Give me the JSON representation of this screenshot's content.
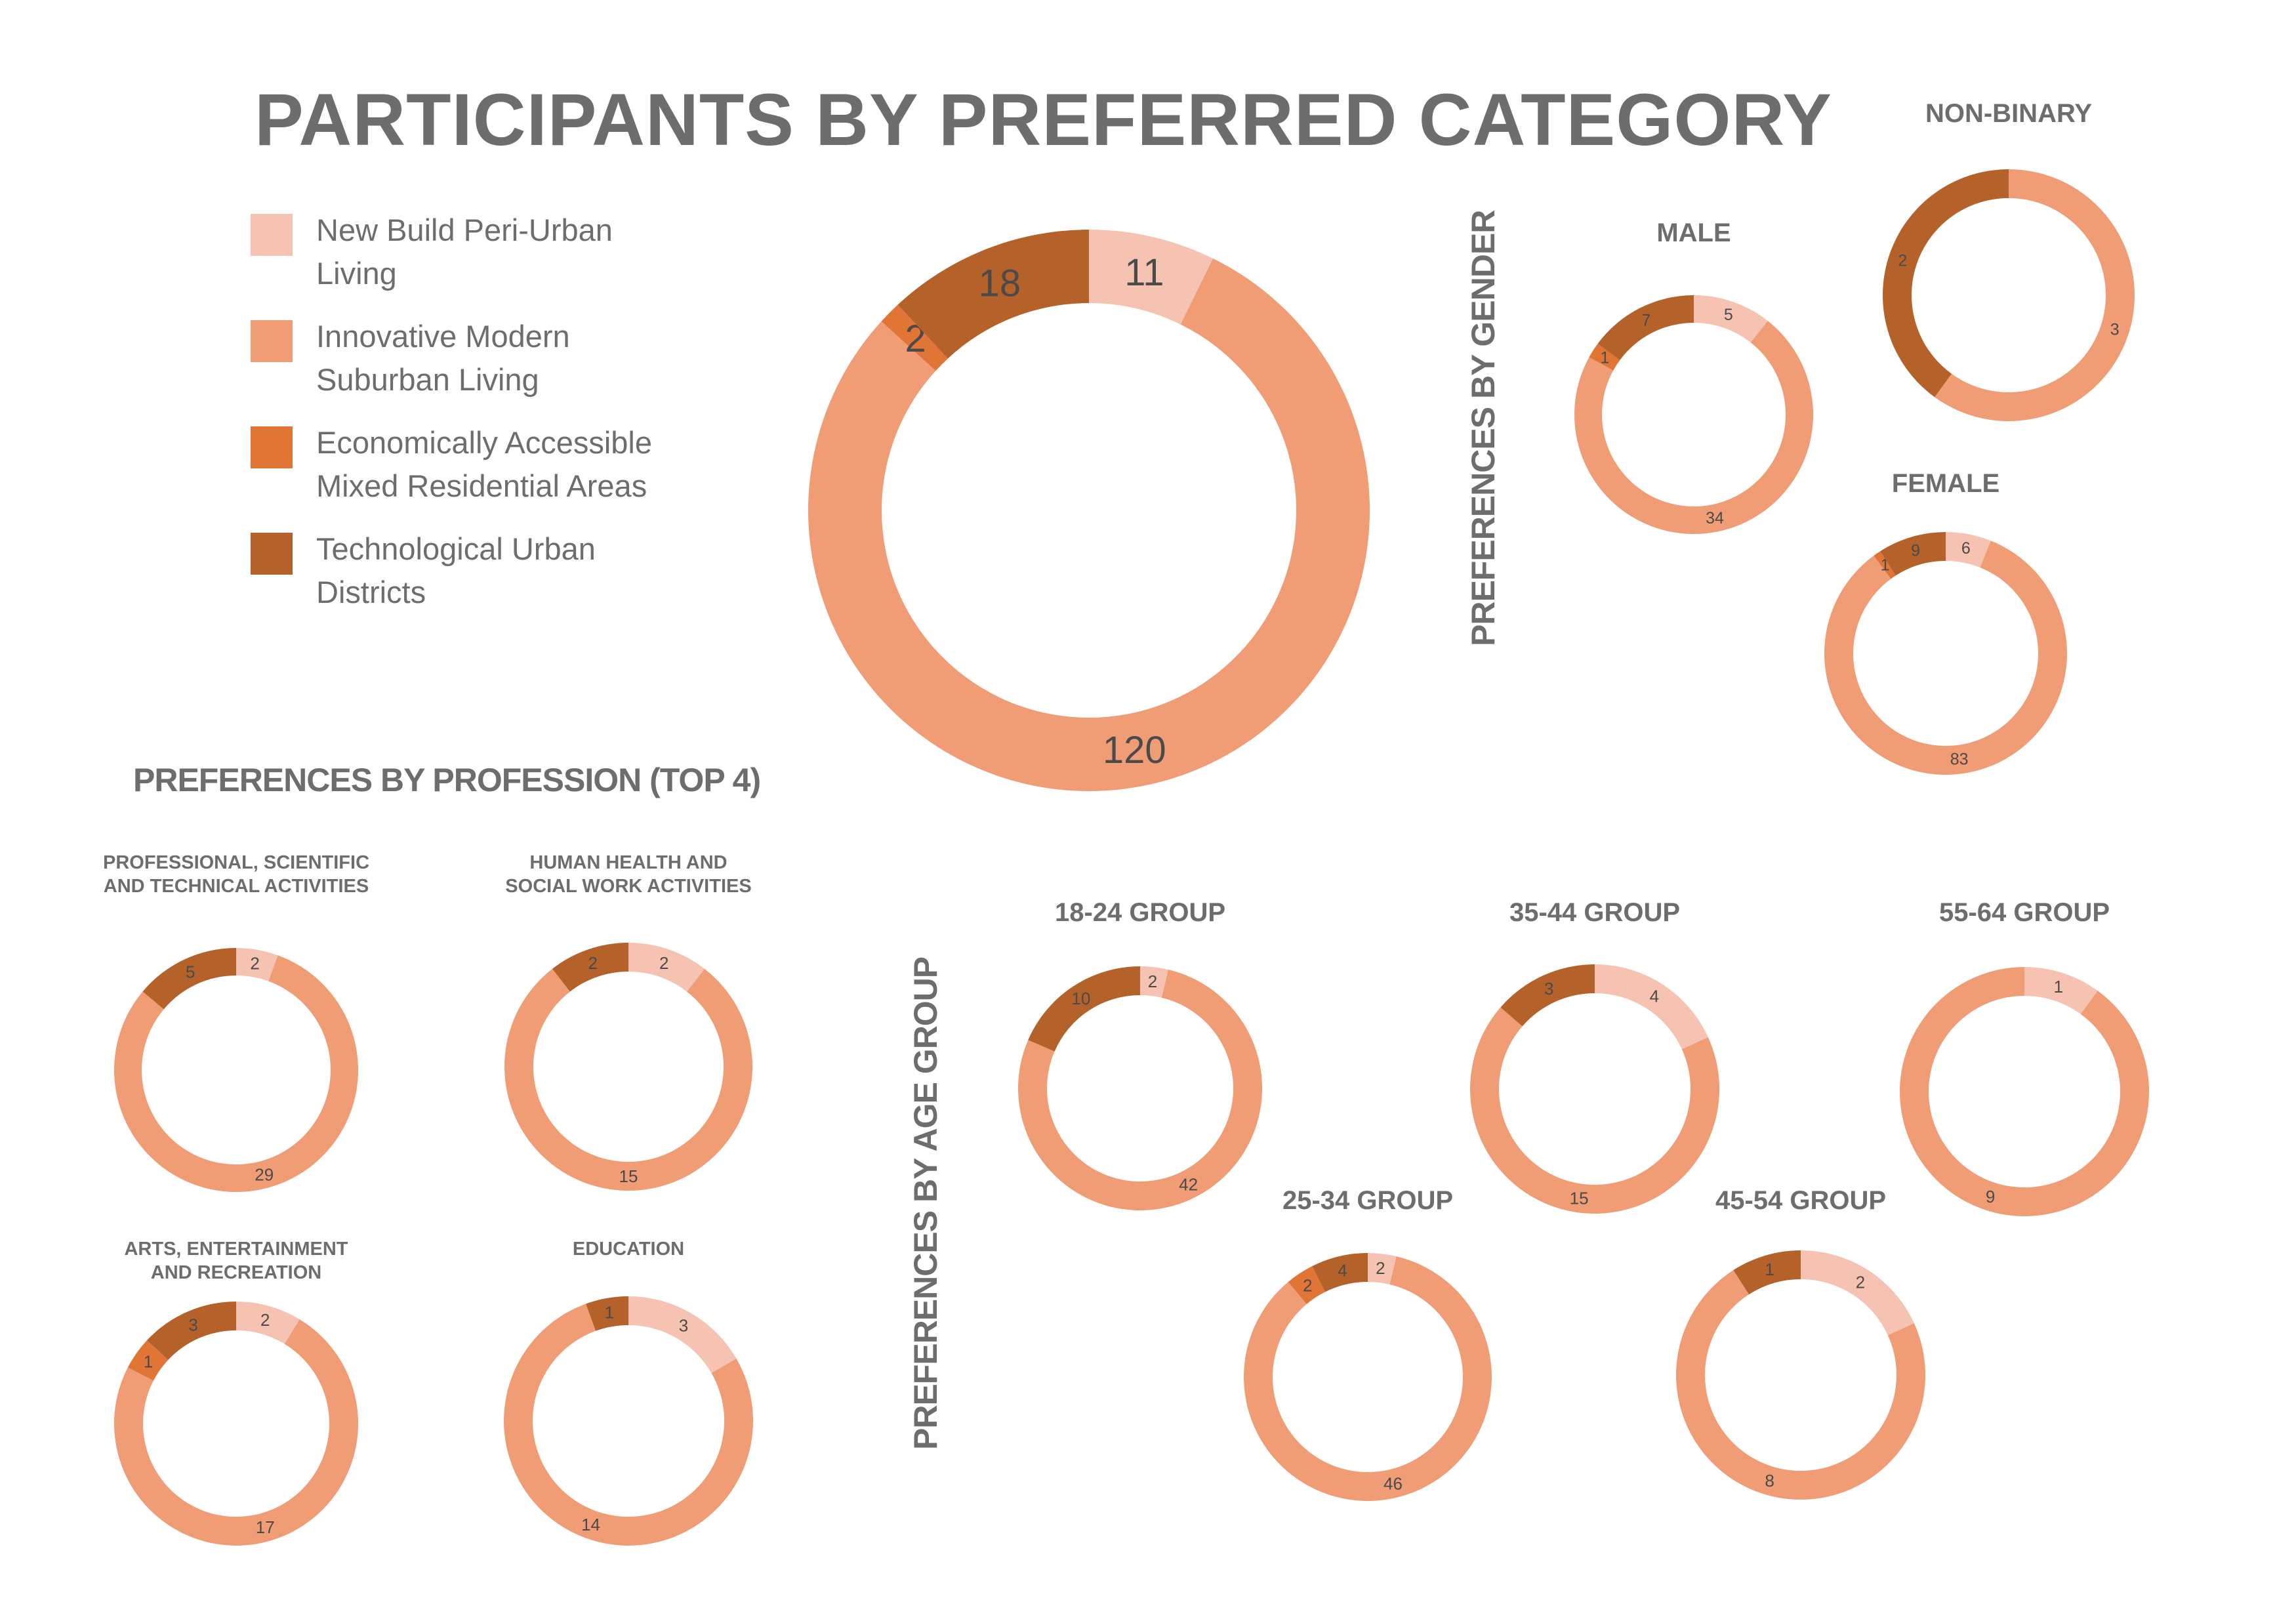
{
  "title": "PARTICIPANTS BY PREFERRED CATEGORY",
  "colors": [
    "#f6c3b2",
    "#f09c75",
    "#e07535",
    "#b5622a"
  ],
  "legend": [
    {
      "line1": "New Build Peri-Urban",
      "line2": "Living"
    },
    {
      "line1": "Innovative Modern",
      "line2": "Suburban Living"
    },
    {
      "line1": "Economically Accessible",
      "line2": "Mixed Residential Areas"
    },
    {
      "line1": "Technological Urban",
      "line2": "Districts"
    }
  ],
  "sections": {
    "gender": "PREFERENCES BY GENDER",
    "profession": "PREFERENCES BY PROFESSION (TOP 4)",
    "age": "PREFERENCES BY AGE GROUP"
  },
  "chart_data": [
    {
      "type": "pie",
      "title": "",
      "categories": [
        "New Build Peri-Urban Living",
        "Innovative Modern Suburban Living",
        "Economically Accessible Mixed Residential Areas",
        "Technological Urban Districts"
      ],
      "values": [
        11,
        120,
        2,
        18
      ]
    },
    {
      "type": "pie",
      "title": "MALE",
      "values": [
        5,
        34,
        1,
        7
      ]
    },
    {
      "type": "pie",
      "title": "NON-BINARY",
      "values": [
        0,
        3,
        0,
        2
      ]
    },
    {
      "type": "pie",
      "title": "FEMALE",
      "values": [
        6,
        83,
        1,
        9
      ]
    },
    {
      "type": "pie",
      "title": "PROFESSIONAL, SCIENTIFIC AND TECHNICAL ACTIVITIES",
      "title_lines": [
        "PROFESSIONAL, SCIENTIFIC",
        "AND TECHNICAL ACTIVITIES"
      ],
      "values": [
        2,
        29,
        0,
        5
      ]
    },
    {
      "type": "pie",
      "title": "HUMAN HEALTH AND SOCIAL WORK ACTIVITIES",
      "title_lines": [
        "HUMAN HEALTH AND",
        "SOCIAL WORK ACTIVITIES"
      ],
      "values": [
        2,
        15,
        0,
        2
      ]
    },
    {
      "type": "pie",
      "title": "ARTS, ENTERTAINMENT AND RECREATION",
      "title_lines": [
        "ARTS, ENTERTAINMENT",
        "AND RECREATION"
      ],
      "values": [
        2,
        17,
        1,
        3
      ]
    },
    {
      "type": "pie",
      "title": "EDUCATION",
      "values": [
        3,
        14,
        0,
        1
      ]
    },
    {
      "type": "pie",
      "title": "18-24 GROUP",
      "values": [
        2,
        42,
        0,
        10
      ]
    },
    {
      "type": "pie",
      "title": "35-44 GROUP",
      "values": [
        4,
        15,
        0,
        3
      ]
    },
    {
      "type": "pie",
      "title": "55-64 GROUP",
      "values": [
        1,
        9,
        0,
        0
      ]
    },
    {
      "type": "pie",
      "title": "25-34 GROUP",
      "values": [
        2,
        46,
        2,
        4
      ]
    },
    {
      "type": "pie",
      "title": "45-54 GROUP",
      "values": [
        2,
        8,
        0,
        1
      ]
    }
  ]
}
